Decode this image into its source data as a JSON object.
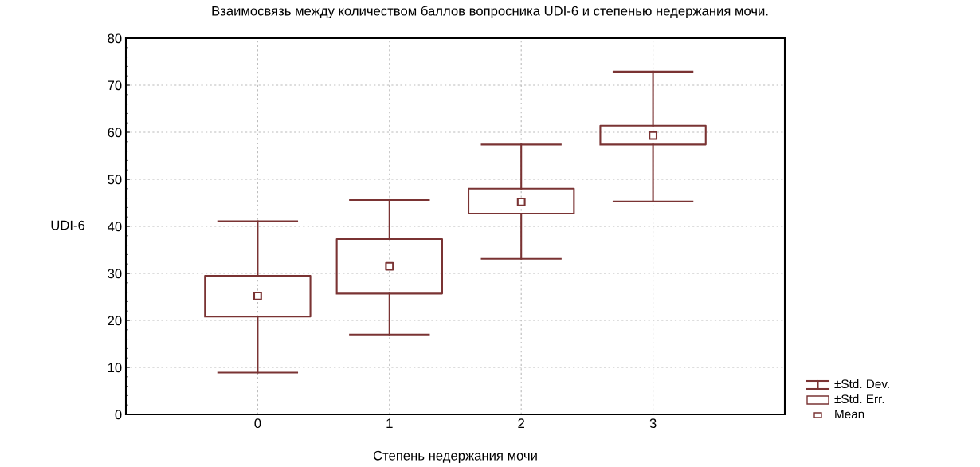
{
  "chart_data": {
    "type": "box",
    "title": "Взаимосвязь между количеством баллов вопросника UDI-6 и степенью недержания мочи.",
    "xlabel": "Степень недержания мочи",
    "ylabel": "UDI-6",
    "categories": [
      "0",
      "1",
      "2",
      "3"
    ],
    "boxes": [
      {
        "low": 8.9,
        "q1": 20.8,
        "median": 25.2,
        "q3": 29.5,
        "high": 41.1
      },
      {
        "low": 17.0,
        "q1": 25.7,
        "median": 31.5,
        "q3": 37.3,
        "high": 45.6
      },
      {
        "low": 33.1,
        "q1": 42.7,
        "median": 45.2,
        "q3": 48.0,
        "high": 57.4
      },
      {
        "low": 45.3,
        "q1": 57.4,
        "median": 59.3,
        "q3": 61.4,
        "high": 72.9
      }
    ],
    "color": "#7a3333",
    "ylim": [
      0,
      80
    ],
    "yticks": [
      0,
      10,
      20,
      30,
      40,
      50,
      60,
      70,
      80
    ],
    "grid": true,
    "annotations": [
      "±Std. Dev.",
      "±Std. Err.",
      "Mean"
    ]
  }
}
